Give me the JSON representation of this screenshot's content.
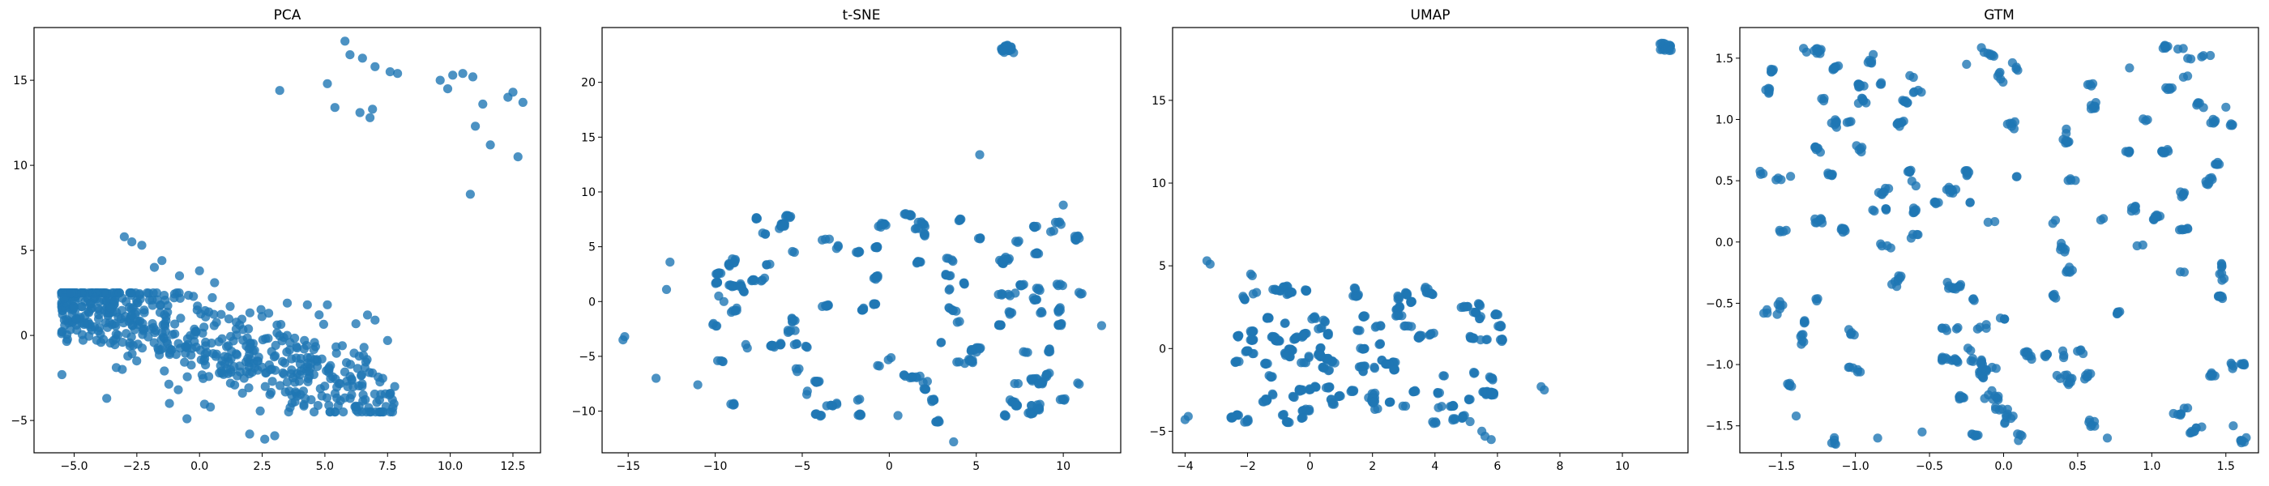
{
  "chart_data": [
    {
      "type": "scatter",
      "title": "PCA",
      "xlim": [
        -6.6,
        13.6
      ],
      "ylim": [
        -6.9,
        18.1
      ],
      "xticks": [
        -5.0,
        -2.5,
        0.0,
        2.5,
        5.0,
        7.5,
        10.0,
        12.5
      ],
      "yticks": [
        -5,
        0,
        5,
        10,
        15
      ],
      "xtick_labels": [
        "−5.0",
        "−2.5",
        "0.0",
        "2.5",
        "5.0",
        "7.5",
        "10.0",
        "12.5"
      ],
      "ytick_labels": [
        "−5",
        "0",
        "5",
        "10",
        "15"
      ],
      "color": "#1f77b4",
      "clusters": [
        {
          "x": [
            -5.5,
            7.8
          ],
          "y": [
            -4.5,
            2.5
          ],
          "slope": -0.45,
          "n": 640,
          "kind": "band"
        }
      ],
      "points": [
        [
          -3.0,
          5.8
        ],
        [
          -2.7,
          5.5
        ],
        [
          -2.3,
          5.3
        ],
        [
          -1.5,
          4.4
        ],
        [
          -1.8,
          4.0
        ],
        [
          0,
          3.8
        ],
        [
          0.6,
          3.1
        ],
        [
          -0.8,
          3.5
        ],
        [
          3.5,
          1.9
        ],
        [
          4.3,
          1.8
        ],
        [
          5.1,
          1.8
        ],
        [
          6.7,
          1.2
        ],
        [
          7.0,
          0.9
        ],
        [
          7.5,
          -0.3
        ],
        [
          3.0,
          -5.9
        ],
        [
          2.6,
          -6.1
        ],
        [
          2.0,
          -5.8
        ],
        [
          -3.7,
          -3.7
        ],
        [
          -1.2,
          -4.0
        ],
        [
          -0.5,
          -4.9
        ],
        [
          6.2,
          -4.2
        ],
        [
          3.2,
          14.4
        ],
        [
          5.1,
          14.8
        ],
        [
          5.8,
          17.3
        ],
        [
          6.0,
          16.5
        ],
        [
          6.5,
          16.3
        ],
        [
          7.0,
          15.8
        ],
        [
          7.6,
          15.5
        ],
        [
          6.4,
          13.1
        ],
        [
          5.4,
          13.4
        ],
        [
          6.9,
          13.3
        ],
        [
          6.8,
          12.8
        ],
        [
          9.6,
          15.0
        ],
        [
          10.1,
          15.3
        ],
        [
          10.5,
          15.4
        ],
        [
          10.9,
          15.2
        ],
        [
          11.0,
          12.3
        ],
        [
          11.3,
          13.6
        ],
        [
          11.6,
          11.2
        ],
        [
          10.8,
          8.3
        ],
        [
          12.3,
          14.0
        ],
        [
          12.5,
          14.3
        ],
        [
          12.9,
          13.7
        ],
        [
          12.7,
          10.5
        ],
        [
          7.9,
          15.4
        ],
        [
          9.9,
          14.5
        ]
      ]
    },
    {
      "type": "scatter",
      "title": "t-SNE",
      "xlim": [
        -16.5,
        13.3
      ],
      "ylim": [
        -13.8,
        25.0
      ],
      "xticks": [
        -15,
        -10,
        -5,
        0,
        5,
        10
      ],
      "yticks": [
        -10,
        -5,
        0,
        5,
        10,
        15,
        20
      ],
      "xtick_labels": [
        "−15",
        "−10",
        "−5",
        "0",
        "5",
        "10"
      ],
      "ytick_labels": [
        "−10",
        "−5",
        "0",
        "5",
        "10",
        "15",
        "20"
      ],
      "color": "#1f77b4",
      "clusters": [
        {
          "x": [
            -10,
            11
          ],
          "y": [
            -11,
            8
          ],
          "n": 520,
          "kind": "clumps"
        },
        {
          "x": [
            6.4,
            7.2
          ],
          "y": [
            22.7,
            23.4
          ],
          "n": 20,
          "kind": "blob"
        }
      ],
      "points": [
        [
          -15.3,
          -3.5
        ],
        [
          -15.2,
          -3.2
        ],
        [
          -13.4,
          -7.0
        ],
        [
          -12.8,
          1.1
        ],
        [
          -12.6,
          3.6
        ],
        [
          -11.0,
          -7.6
        ],
        [
          -9.8,
          0.5
        ],
        [
          -9.5,
          0.0
        ],
        [
          5.2,
          13.4
        ],
        [
          10.0,
          8.8
        ],
        [
          3.7,
          -12.8
        ],
        [
          12.2,
          -2.2
        ],
        [
          0.5,
          -10.4
        ]
      ]
    },
    {
      "type": "scatter",
      "title": "UMAP",
      "xlim": [
        -4.4,
        12.1
      ],
      "ylim": [
        -6.3,
        19.4
      ],
      "xticks": [
        -4,
        -2,
        0,
        2,
        4,
        6,
        8,
        10
      ],
      "yticks": [
        -5,
        0,
        5,
        10,
        15
      ],
      "xtick_labels": [
        "−4",
        "−2",
        "0",
        "2",
        "4",
        "6",
        "8",
        "10"
      ],
      "ytick_labels": [
        "−5",
        "0",
        "5",
        "10",
        "15"
      ],
      "color": "#1f77b4",
      "clusters": [
        {
          "x": [
            -2.5,
            6.2
          ],
          "y": [
            -4.8,
            3.8
          ],
          "n": 560,
          "kind": "clumps"
        },
        {
          "x": [
            11.2,
            11.6
          ],
          "y": [
            18.0,
            18.5
          ],
          "n": 20,
          "kind": "blob"
        }
      ],
      "points": [
        [
          -4.0,
          -4.3
        ],
        [
          -3.9,
          -4.1
        ],
        [
          -3.3,
          5.3
        ],
        [
          -3.2,
          5.1
        ],
        [
          -1.9,
          4.5
        ],
        [
          -1.85,
          4.4
        ],
        [
          7.4,
          -2.3
        ],
        [
          7.5,
          -2.5
        ],
        [
          5.5,
          -5.0
        ],
        [
          5.8,
          -5.5
        ],
        [
          5.6,
          -5.3
        ]
      ]
    },
    {
      "type": "scatter",
      "title": "GTM",
      "xlim": [
        -1.78,
        1.72
      ],
      "ylim": [
        -1.72,
        1.75
      ],
      "xticks": [
        -1.5,
        -1.0,
        -0.5,
        0.0,
        0.5,
        1.0,
        1.5
      ],
      "yticks": [
        -1.5,
        -1.0,
        -0.5,
        0.0,
        0.5,
        1.0,
        1.5
      ],
      "xtick_labels": [
        "−1.5",
        "−1.0",
        "−0.5",
        "0.0",
        "0.5",
        "1.0",
        "1.5"
      ],
      "ytick_labels": [
        "−1.5",
        "−1.0",
        "−0.5",
        "0.0",
        "0.5",
        "1.0",
        "1.5"
      ],
      "color": "#1f77b4",
      "clusters": [
        {
          "x": [
            -1.65,
            1.65
          ],
          "y": [
            -1.65,
            1.6
          ],
          "n": 620,
          "kind": "clumps"
        }
      ],
      "points": [
        [
          -1.35,
          1.58
        ],
        [
          -1.33,
          1.55
        ],
        [
          -0.88,
          1.53
        ],
        [
          -0.25,
          1.45
        ],
        [
          0.85,
          1.42
        ],
        [
          1.5,
          1.1
        ],
        [
          -1.4,
          -1.42
        ],
        [
          1.55,
          -1.5
        ],
        [
          0.7,
          -1.6
        ],
        [
          -0.55,
          -1.55
        ],
        [
          -0.85,
          -1.6
        ],
        [
          0.1,
          -1.62
        ]
      ]
    }
  ]
}
